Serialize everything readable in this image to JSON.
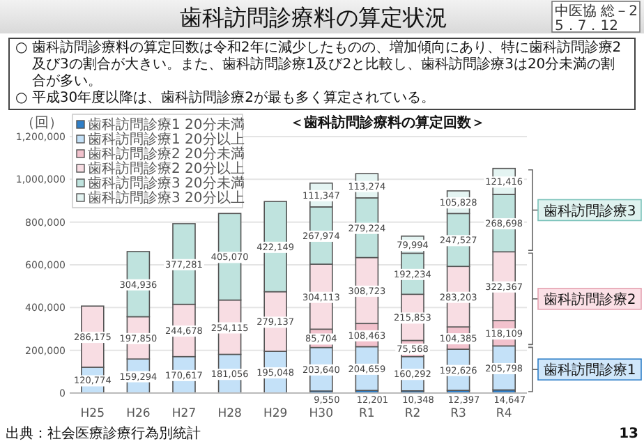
{
  "chart_data": {
    "type": "bar",
    "stacked": true,
    "title": "歯科訪問診療料の算定状況",
    "subtitle": "＜歯科訪問診療料の算定回数＞",
    "ylabel": "（回）",
    "categories": [
      "H25",
      "H26",
      "H27",
      "H28",
      "H29",
      "H30",
      "R1",
      "R2",
      "R3",
      "R4"
    ],
    "series": [
      {
        "name": "歯科訪問診療1 20分未満",
        "color": "#2f7fc8",
        "values": [
          null,
          null,
          null,
          null,
          null,
          9550,
          12201,
          10348,
          12397,
          14647
        ],
        "value_labels": [
          null,
          null,
          null,
          null,
          null,
          "9,550",
          "12,201",
          "10,348",
          "12,397",
          "14,647"
        ]
      },
      {
        "name": "歯科訪問診療1 20分以上",
        "color": "#c4e1f8",
        "values": [
          120774,
          159294,
          170617,
          181056,
          195048,
          203640,
          204659,
          160292,
          192626,
          205798
        ],
        "value_labels": [
          "120,774",
          "159,294",
          "170,617",
          "181,056",
          "195,048",
          "203,640",
          "204,659",
          "160,292",
          "192,626",
          "205,798"
        ]
      },
      {
        "name": "歯科訪問診療2 20分未満",
        "color": "#f2c2cd",
        "values": [
          null,
          null,
          null,
          null,
          null,
          85704,
          108463,
          75568,
          104385,
          118109
        ],
        "value_labels": [
          null,
          null,
          null,
          null,
          null,
          "85,704",
          "108,463",
          "75,568",
          "104,385",
          "118,109"
        ]
      },
      {
        "name": "歯科訪問診療2 20分以上",
        "color": "#f8dde3",
        "values": [
          286175,
          197850,
          244678,
          254115,
          279137,
          304113,
          308723,
          215853,
          283203,
          322367
        ],
        "value_labels": [
          "286,175",
          "197,850",
          "244,678",
          "254,115",
          "279,137",
          "304,113",
          "308,723",
          "215,853",
          "283,203",
          "322,367"
        ]
      },
      {
        "name": "歯科訪問診療3 20分未満",
        "color": "#bfe3de",
        "values": [
          null,
          304936,
          377281,
          405070,
          422149,
          267974,
          279224,
          192234,
          247527,
          268698
        ],
        "value_labels": [
          null,
          "304,936",
          "377,281",
          "405,070",
          "422,149",
          "267,974",
          "279,224",
          "192,234",
          "247,527",
          "268,698"
        ]
      },
      {
        "name": "歯科訪問診療3 20分以上",
        "color": "#e4f4f2",
        "values": [
          null,
          null,
          null,
          null,
          null,
          111347,
          113274,
          79994,
          105828,
          121416
        ],
        "value_labels": [
          null,
          null,
          null,
          null,
          null,
          "111,347",
          "113,274",
          "79,994",
          "105,828",
          "121,416"
        ]
      }
    ],
    "ylim": [
      0,
      1200000
    ],
    "yticks": [
      {
        "value": 0,
        "label": "0"
      },
      {
        "value": 200000,
        "label": "200,000"
      },
      {
        "value": 400000,
        "label": "400,000"
      },
      {
        "value": 600000,
        "label": "600,000"
      },
      {
        "value": 800000,
        "label": "800,000"
      },
      {
        "value": 1000000,
        "label": "1,000,000"
      },
      {
        "value": 1200000,
        "label": "1,200,000"
      }
    ],
    "grid": "y",
    "legend": "top left",
    "annotations": [
      "中医協 総－2",
      "5．7．12",
      "○ 歯科訪問診療料の算定回数は令和2年に減少したものの、増加傾向にあり、特に歯科訪問診療2及び3の割合が大きい。また、歯科訪問診療1及び2と比較し、歯科訪問診療3は20分未満の割合が多い。",
      "○ 平成30年度以降は、歯科訪問診療2が最も多く算定されている。",
      "歯科訪問診療3",
      "歯科訪問診療2",
      "歯科訪問診療1",
      "出典：社会医療診療行為別統計",
      "13"
    ]
  }
}
